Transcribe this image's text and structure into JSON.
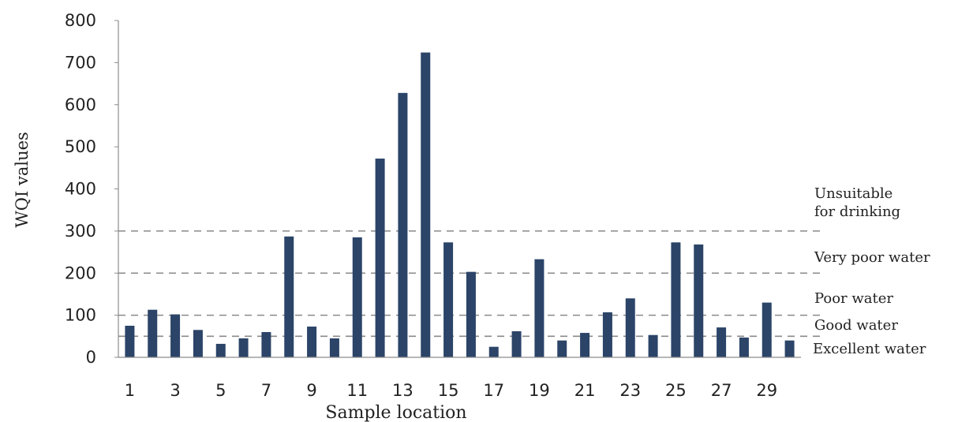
{
  "chart_data": {
    "type": "bar",
    "xlabel": "Sample location",
    "ylabel": "WQI values",
    "ylim": [
      0,
      800
    ],
    "yticks": [
      0,
      100,
      200,
      300,
      400,
      500,
      600,
      700,
      800
    ],
    "x_tick_labels": [
      "1",
      "3",
      "5",
      "7",
      "9",
      "11",
      "13",
      "15",
      "17",
      "19",
      "21",
      "23",
      "25",
      "27",
      "29"
    ],
    "categories": [
      1,
      2,
      3,
      4,
      5,
      6,
      7,
      8,
      9,
      10,
      11,
      12,
      13,
      14,
      15,
      16,
      17,
      18,
      19,
      20,
      21,
      22,
      23,
      24,
      25,
      26,
      27,
      28,
      29,
      30
    ],
    "values": [
      75,
      113,
      102,
      65,
      32,
      45,
      60,
      287,
      73,
      45,
      285,
      472,
      628,
      724,
      273,
      203,
      25,
      62,
      233,
      40,
      58,
      107,
      140,
      53,
      273,
      268,
      71,
      47,
      130,
      40
    ],
    "bar_color": "#2b4468",
    "thresholds": [
      {
        "value": 50,
        "style": "dashed"
      },
      {
        "value": 100,
        "style": "dashed"
      },
      {
        "value": 200,
        "style": "dashed"
      },
      {
        "value": 300,
        "style": "dashed"
      }
    ],
    "zone_labels": {
      "unsuitable_line1": "Unsuitable",
      "unsuitable_line2": "for drinking",
      "very_poor": "Very poor water",
      "poor": "Poor water",
      "good": "Good water",
      "excellent": "Excellent water"
    },
    "grid": false
  }
}
